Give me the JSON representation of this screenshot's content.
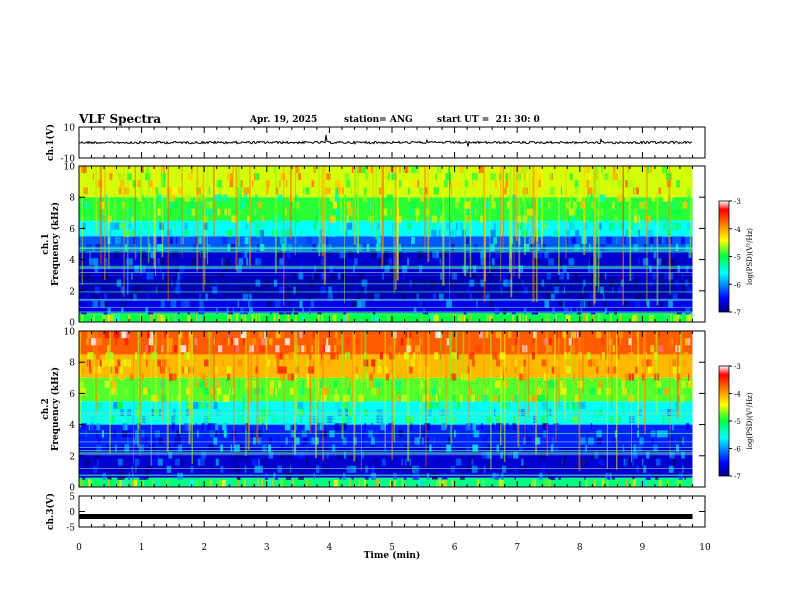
{
  "chart_data": [
    {
      "panel": "ch1-waveform",
      "type": "line",
      "ylabel": "ch.1(V)",
      "ylim": [
        -10,
        10
      ],
      "yticks": [
        "10",
        "-10"
      ],
      "xlim": [
        0,
        10
      ],
      "baseline_value": 0,
      "description_values": "noisy waveform near 0 V with occasional spikes"
    },
    {
      "panel": "ch1-spectrogram",
      "type": "heatmap",
      "ylabel": [
        "ch.1",
        "Frequency (kHz)"
      ],
      "ylim": [
        0,
        10
      ],
      "yticks": [
        "0",
        "2",
        "4",
        "6",
        "8",
        "10"
      ],
      "xlim": [
        0,
        10
      ],
      "x_end_data": 9.8,
      "colorbar": {
        "label": "log(PSD)(V²/Hz)",
        "range": [
          -7,
          -3
        ],
        "ticks": [
          "-3",
          "-4",
          "-5",
          "-6",
          "-7"
        ]
      },
      "bands_khz": [
        {
          "from": 0,
          "to": 0.6,
          "level": -5.0
        },
        {
          "from": 0.6,
          "to": 1.5,
          "level": -6.6
        },
        {
          "from": 1.5,
          "to": 3.0,
          "level": -6.8
        },
        {
          "from": 3.0,
          "to": 4.5,
          "level": -6.7
        },
        {
          "from": 4.5,
          "to": 5.5,
          "level": -6.2
        },
        {
          "from": 5.5,
          "to": 6.5,
          "level": -5.6
        },
        {
          "from": 6.5,
          "to": 8.0,
          "level": -4.9
        },
        {
          "from": 8.0,
          "to": 10.0,
          "level": -4.5
        }
      ]
    },
    {
      "panel": "ch2-spectrogram",
      "type": "heatmap",
      "ylabel": [
        "ch.2",
        "Frequency (kHz)"
      ],
      "ylim": [
        0,
        10
      ],
      "yticks": [
        "0",
        "2",
        "4",
        "6",
        "8",
        "10"
      ],
      "xlim": [
        0,
        10
      ],
      "x_end_data": 9.8,
      "colorbar": {
        "label": "log(PSD)(V²/Hz)",
        "range": [
          -7,
          -3
        ],
        "ticks": [
          "-3",
          "-4",
          "-5",
          "-6",
          "-7"
        ]
      },
      "bands_khz": [
        {
          "from": 0,
          "to": 0.6,
          "level": -5.2
        },
        {
          "from": 0.6,
          "to": 2.5,
          "level": -6.7
        },
        {
          "from": 2.5,
          "to": 4.0,
          "level": -6.4
        },
        {
          "from": 4.0,
          "to": 5.5,
          "level": -5.6
        },
        {
          "from": 5.5,
          "to": 7.0,
          "level": -4.8
        },
        {
          "from": 7.0,
          "to": 8.5,
          "level": -4.1
        },
        {
          "from": 8.5,
          "to": 10.0,
          "level": -3.7
        }
      ]
    },
    {
      "panel": "ch3-waveform",
      "type": "line",
      "ylabel": "ch.3(V)",
      "ylim": [
        -5,
        5
      ],
      "yticks": [
        "5",
        "0",
        "-5"
      ],
      "xlim": [
        0,
        10
      ],
      "baseline_value": -1.6,
      "xlabel": "Time (min)",
      "xticks": [
        "0",
        "1",
        "2",
        "3",
        "4",
        "5",
        "6",
        "7",
        "8",
        "9",
        "10"
      ]
    }
  ],
  "header": {
    "title": "VLF Spectra",
    "date": "Apr. 19, 2025",
    "station": "station= ANG",
    "start": "start UT =  21: 30: 0"
  }
}
